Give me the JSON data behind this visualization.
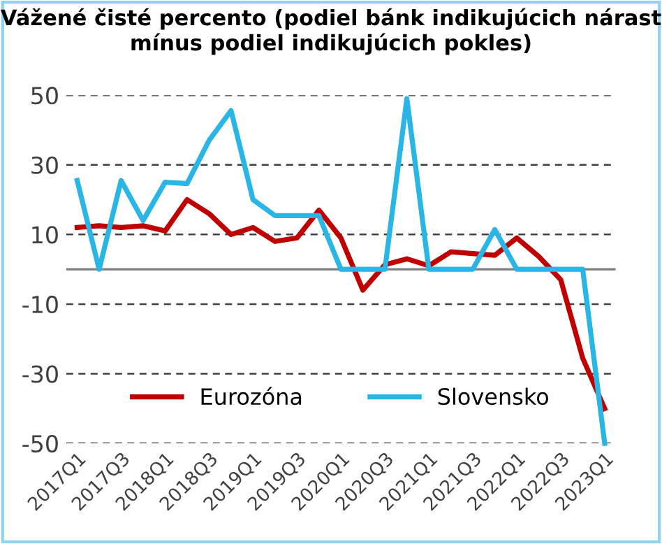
{
  "chart_data": {
    "type": "line",
    "title": "Vážené čisté percento (podiel bánk indikujúcich nárast mínus podiel indikujúcich pokles)",
    "categories": [
      "2017Q1",
      null,
      "2017Q3",
      null,
      "2018Q1",
      null,
      "2018Q3",
      null,
      "2019Q1",
      null,
      "2019Q3",
      null,
      "2020Q1",
      null,
      "2020Q3",
      null,
      "2021Q1",
      null,
      "2021Q3",
      null,
      "2022Q1",
      null,
      "2022Q3",
      null,
      "2023Q1"
    ],
    "series": [
      {
        "name": "Eurozóna",
        "color": "#c00000",
        "values": [
          12,
          12.5,
          12,
          12.5,
          11,
          20,
          16,
          10,
          12,
          8,
          9,
          17,
          9,
          -6,
          1.3,
          3,
          1,
          5,
          4.5,
          4,
          9,
          3.7,
          -3,
          -25.5,
          -40
        ]
      },
      {
        "name": "Slovensko",
        "color": "#29b6e6",
        "values": [
          25.5,
          0,
          25.5,
          14,
          25,
          24.6,
          37,
          45.6,
          20,
          15.4,
          15.4,
          15.4,
          0,
          0,
          0,
          49,
          0,
          0,
          0,
          11.4,
          0,
          0,
          0,
          0,
          -50
        ]
      }
    ],
    "ylim": [
      -50,
      50
    ],
    "yticks": [
      50,
      30,
      10,
      -10,
      -30,
      -50
    ],
    "grid": "y",
    "legend": "bottom",
    "line_style": "solid",
    "marker": "none",
    "ref_lines": [
      {
        "axis": "y",
        "value": 0,
        "color": "#7f7f7f",
        "line_style": "solid"
      }
    ]
  }
}
